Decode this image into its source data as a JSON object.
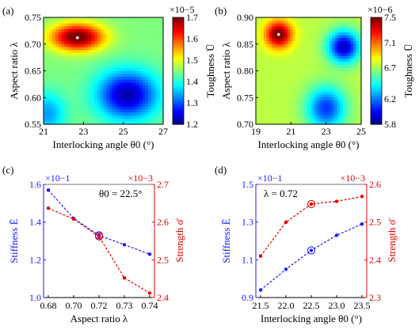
{
  "panels": [
    {
      "tag": "(a)",
      "chart_data": {
        "type": "heatmap",
        "xlabel": "Interlocking angle θ0 (°)",
        "ylabel": "Aspect ratio λ",
        "x_ticks": [
          "21",
          "23",
          "25",
          "27"
        ],
        "y_ticks": [
          "0.55",
          "0.60",
          "0.65",
          "0.70",
          "0.75"
        ],
        "xlim": [
          21,
          27
        ],
        "ylim": [
          0.55,
          0.75
        ],
        "colorbar": {
          "label": "Toughness Ū",
          "exponent": "×10−5",
          "ticks": [
            "1.2",
            "1.3",
            "1.4",
            "1.5",
            "1.6",
            "1.7"
          ],
          "range": [
            1.2,
            1.7
          ]
        },
        "field": [
          {
            "x": 22.7,
            "y": 0.713,
            "value": 1.72,
            "sx": 1.3,
            "sy": 0.025
          },
          {
            "x": 25.2,
            "y": 0.605,
            "value": 1.22,
            "sx": 1.5,
            "sy": 0.045
          },
          {
            "x": 21.2,
            "y": 0.57,
            "value": 1.34,
            "sx": 0.9,
            "sy": 0.04
          }
        ],
        "field_base": 1.45,
        "marker": {
          "x": 22.7,
          "y": 0.712
        }
      }
    },
    {
      "tag": "(b)",
      "chart_data": {
        "type": "heatmap",
        "xlabel": "Interlocking angle θ0 (°)",
        "ylabel": "Aspect ratio λ",
        "x_ticks": [
          "19",
          "21",
          "23",
          "25"
        ],
        "y_ticks": [
          "0.70",
          "0.75",
          "0.80",
          "0.85",
          "0.90"
        ],
        "xlim": [
          19,
          25
        ],
        "ylim": [
          0.7,
          0.9
        ],
        "colorbar": {
          "label": "Toughness Ū",
          "exponent": "×10−6",
          "ticks": [
            "5.8",
            "6.2",
            "6.7",
            "7.1",
            "7.5"
          ],
          "range": [
            5.8,
            7.5
          ]
        },
        "field": [
          {
            "x": 20.3,
            "y": 0.868,
            "value": 7.55,
            "sx": 0.75,
            "sy": 0.025
          },
          {
            "x": 24.0,
            "y": 0.845,
            "value": 5.9,
            "sx": 0.9,
            "sy": 0.03
          },
          {
            "x": 23.0,
            "y": 0.73,
            "value": 6.1,
            "sx": 1.1,
            "sy": 0.04
          }
        ],
        "field_base": 6.75,
        "marker": {
          "x": 20.3,
          "y": 0.868
        }
      }
    },
    {
      "tag": "(c)",
      "chart_data": {
        "type": "line",
        "xlabel": "Aspect ratio λ",
        "x": [
          0.68,
          0.7,
          0.72,
          0.73,
          0.74
        ],
        "x_ticks": [
          "0.68",
          "0.70",
          "0.72",
          "0.73",
          "0.74"
        ],
        "left_axis": {
          "label": "Stiffness Ē",
          "exponent": "×10−1",
          "ticks": [
            "1.0",
            "1.2",
            "1.4",
            "1.6"
          ],
          "ylim": [
            1.0,
            1.6
          ],
          "color": "#1a1aff"
        },
        "right_axis": {
          "label": "Strength σ̄",
          "exponent": "×10−3",
          "ticks": [
            "2.4",
            "2.5",
            "2.6",
            "2.7"
          ],
          "ylim": [
            2.4,
            2.7
          ],
          "color": "#e60000"
        },
        "series": [
          {
            "axis": "left",
            "values": [
              1.57,
              1.42,
              1.33,
              1.28,
              1.23
            ],
            "color": "#1a1aff"
          },
          {
            "axis": "right",
            "values": [
              2.637,
              2.608,
              2.562,
              2.452,
              2.412
            ],
            "color": "#e60000"
          }
        ],
        "highlight_index": 2,
        "annotation": "θ0 = 22.5°"
      }
    },
    {
      "tag": "(d)",
      "chart_data": {
        "type": "line",
        "xlabel": "Interlocking angle θ0 (°)",
        "x": [
          21.5,
          22.0,
          22.5,
          23.0,
          23.5
        ],
        "x_ticks": [
          "21.5",
          "22.0",
          "22.5",
          "23.0",
          "23.5"
        ],
        "left_axis": {
          "label": "Stiffness Ē",
          "exponent": "×10−1",
          "ticks": [
            "0.9",
            "1.1",
            "1.3",
            "1.5"
          ],
          "ylim": [
            0.9,
            1.5
          ],
          "color": "#1a1aff"
        },
        "right_axis": {
          "label": "Strength σ̄",
          "exponent": "×10−3",
          "ticks": [
            "2.3",
            "2.4",
            "2.5",
            "2.6"
          ],
          "ylim": [
            2.3,
            2.6
          ],
          "color": "#e60000"
        },
        "series": [
          {
            "axis": "left",
            "values": [
              0.94,
              1.05,
              1.15,
              1.23,
              1.29
            ],
            "color": "#1a1aff"
          },
          {
            "axis": "right",
            "values": [
              2.41,
              2.5,
              2.548,
              2.555,
              2.568
            ],
            "color": "#e60000"
          }
        ],
        "highlight_index": 2,
        "annotation": "λ = 0.72"
      }
    }
  ]
}
